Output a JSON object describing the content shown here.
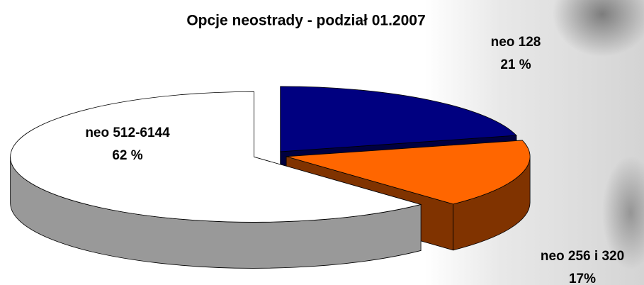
{
  "chart_data": {
    "type": "pie",
    "title": "Opcje neostrady - podział 01.2007",
    "categories": [
      "neo 128",
      "neo 256 i 320",
      "neo 512-6144"
    ],
    "values": [
      21,
      17,
      62
    ],
    "value_labels": [
      "21 %",
      "17%",
      "62 %"
    ],
    "colors": [
      "#000080",
      "#ff6600",
      "#ffffff"
    ],
    "side_colors": [
      "#000040",
      "#803300",
      "#999999"
    ]
  }
}
